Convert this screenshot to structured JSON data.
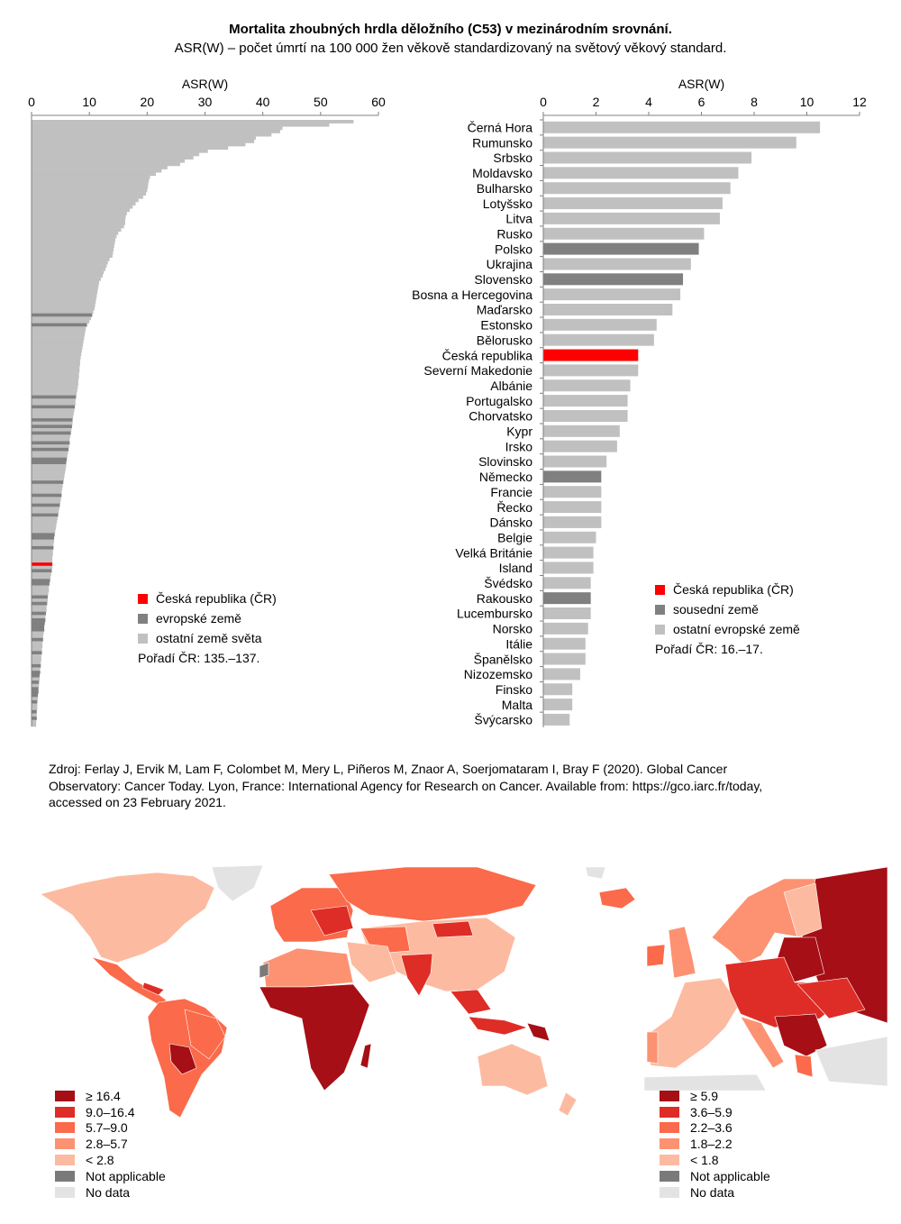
{
  "title": "Mortalita zhoubných hrdla děložního (C53) v mezinárodním srovnání.",
  "subtitle": "ASR(W) – počet úmrtí na 100 000 žen věkově standardizovaný na světový věkový standard.",
  "colors": {
    "cz": "#ff0000",
    "dark": "#808080",
    "light": "#c0c0c0"
  },
  "chart_data": [
    {
      "type": "bar",
      "orientation": "horizontal",
      "xlabel": "ASR(W)",
      "xlim": [
        0,
        60
      ],
      "xticks": [
        "0",
        "10",
        "20",
        "30",
        "40",
        "50",
        "60"
      ],
      "values": [
        55.7,
        51.5,
        43.4,
        43.0,
        41.5,
        38.8,
        38.5,
        37.0,
        34.0,
        30.5,
        29.0,
        28.0,
        26.5,
        25.7,
        23.5,
        22.5,
        21.5,
        20.5,
        20.3,
        20.2,
        20.1,
        20.0,
        19.8,
        19.3,
        18.5,
        18.0,
        17.5,
        17.0,
        16.5,
        16.3,
        16.2,
        16.2,
        16.0,
        15.5,
        15.0,
        14.7,
        14.5,
        14.4,
        14.3,
        14.2,
        14.1,
        14.0,
        13.5,
        13.2,
        13.0,
        12.8,
        12.5,
        12.3,
        12.0,
        11.7,
        11.6,
        11.5,
        11.4,
        11.3,
        11.2,
        11.1,
        11.0,
        10.9,
        10.7,
        10.5,
        10.3,
        10.0,
        9.6,
        9.4,
        9.3,
        9.2,
        9.1,
        9.0,
        8.9,
        8.8,
        8.7,
        8.6,
        8.5,
        8.4,
        8.4,
        8.3,
        8.3,
        8.2,
        8.2,
        8.1,
        8.1,
        8.0,
        7.9,
        7.8,
        7.7,
        7.6,
        7.6,
        7.5,
        7.4,
        7.3,
        7.2,
        7.1,
        7.1,
        7.0,
        6.9,
        6.8,
        6.7,
        6.6,
        6.6,
        6.5,
        6.4,
        6.3,
        6.2,
        6.1,
        6.0,
        6.0,
        5.9,
        5.8,
        5.7,
        5.6,
        5.5,
        5.4,
        5.3,
        5.2,
        5.2,
        5.1,
        5.0,
        4.9,
        4.8,
        4.7,
        4.6,
        4.5,
        4.4,
        4.3,
        4.2,
        4.1,
        4.0,
        3.9,
        3.9,
        3.8,
        3.8,
        3.7,
        3.7,
        3.6,
        3.6,
        3.6,
        3.6,
        3.5,
        3.4,
        3.3,
        3.2,
        3.1,
        3.0,
        3.0,
        2.9,
        2.8,
        2.8,
        2.7,
        2.6,
        2.6,
        2.5,
        2.4,
        2.4,
        2.3,
        2.2,
        2.2,
        2.1,
        2.0,
        2.0,
        1.9,
        1.9,
        1.8,
        1.8,
        1.7,
        1.7,
        1.6,
        1.6,
        1.5,
        1.5,
        1.4,
        1.4,
        1.3,
        1.3,
        1.2,
        1.2,
        1.1,
        1.1,
        1.0,
        1.0,
        1.0,
        0.9,
        0.9,
        0.9,
        0.8,
        0.8
      ],
      "europe_ranks": [
        60,
        63,
        85,
        88,
        92,
        94,
        96,
        99,
        101,
        104,
        105,
        111,
        115,
        118,
        121,
        127,
        128,
        131,
        138,
        141,
        142,
        146,
        148,
        151,
        153,
        154,
        155,
        156,
        159,
        163,
        167,
        169,
        170,
        172,
        174,
        175,
        176,
        178,
        181,
        183
      ],
      "cz_rank": 136,
      "legend": [
        {
          "label": "Česká republika (ČR)",
          "color": "#ff0000"
        },
        {
          "label": "evropské země",
          "color": "#808080"
        },
        {
          "label": "ostatní země světa",
          "color": "#c0c0c0"
        }
      ],
      "note": "Pořadí ČR: 135.–137."
    },
    {
      "type": "bar",
      "orientation": "horizontal",
      "xlabel": "ASR(W)",
      "xlim": [
        0,
        12
      ],
      "xticks": [
        "0",
        "2",
        "4",
        "6",
        "8",
        "10",
        "12"
      ],
      "categories": [
        "Černá Hora",
        "Rumunsko",
        "Srbsko",
        "Moldavsko",
        "Bulharsko",
        "Lotyšsko",
        "Litva",
        "Rusko",
        "Polsko",
        "Ukrajina",
        "Slovensko",
        "Bosna a Hercegovina",
        "Maďarsko",
        "Estonsko",
        "Bělorusko",
        "Česká republika",
        "Severní Makedonie",
        "Albánie",
        "Portugalsko",
        "Chorvatsko",
        "Kypr",
        "Irsko",
        "Slovinsko",
        "Německo",
        "Francie",
        "Řecko",
        "Dánsko",
        "Belgie",
        "Velká Británie",
        "Island",
        "Švédsko",
        "Rakousko",
        "Lucembursko",
        "Norsko",
        "Itálie",
        "Španělsko",
        "Nizozemsko",
        "Finsko",
        "Malta",
        "Švýcarsko"
      ],
      "values": [
        10.5,
        9.6,
        7.9,
        7.4,
        7.1,
        6.8,
        6.7,
        6.1,
        5.9,
        5.6,
        5.3,
        5.2,
        4.9,
        4.3,
        4.2,
        3.6,
        3.6,
        3.3,
        3.2,
        3.2,
        2.9,
        2.8,
        2.4,
        2.2,
        2.2,
        2.2,
        2.2,
        2.0,
        1.9,
        1.9,
        1.8,
        1.8,
        1.8,
        1.7,
        1.6,
        1.6,
        1.4,
        1.1,
        1.1,
        1.0
      ],
      "groups": [
        "o",
        "o",
        "o",
        "o",
        "o",
        "o",
        "o",
        "o",
        "n",
        "o",
        "n",
        "o",
        "o",
        "o",
        "o",
        "cz",
        "o",
        "o",
        "o",
        "o",
        "o",
        "o",
        "o",
        "n",
        "o",
        "o",
        "o",
        "o",
        "o",
        "o",
        "o",
        "n",
        "o",
        "o",
        "o",
        "o",
        "o",
        "o",
        "o",
        "o"
      ],
      "legend": [
        {
          "label": "Česká republika (ČR)",
          "color": "#ff0000"
        },
        {
          "label": "sousední země",
          "color": "#808080"
        },
        {
          "label": "ostatní evropské země",
          "color": "#c0c0c0"
        }
      ],
      "note": "Pořadí ČR: 16.–17."
    }
  ],
  "source": {
    "line1": "Zdroj: Ferlay J, Ervik M, Lam F, Colombet M, Mery L, Piñeros M, Znaor A, Soerjomataram I, Bray F (2020). Global Cancer",
    "line2": "Observatory: Cancer Today. Lyon, France: International Agency for Research on Cancer. Available from: https://gco.iarc.fr/today,",
    "line3": "accessed on 23 February 2021."
  },
  "world_map_legend": [
    {
      "label": "≥ 16.4",
      "color": "#a50f15"
    },
    {
      "label": "9.0–16.4",
      "color": "#de2d26"
    },
    {
      "label": "5.7–9.0",
      "color": "#fb6a4a"
    },
    {
      "label": "2.8–5.7",
      "color": "#fc9272"
    },
    {
      "label": "< 2.8",
      "color": "#fcbba1"
    },
    {
      "label": "Not applicable",
      "color": "#7a7a7a"
    },
    {
      "label": "No data",
      "color": "#e3e3e3"
    }
  ],
  "europe_map_legend": [
    {
      "label": "≥ 5.9",
      "color": "#a50f15"
    },
    {
      "label": "3.6–5.9",
      "color": "#de2d26"
    },
    {
      "label": "2.2–3.6",
      "color": "#fb6a4a"
    },
    {
      "label": "1.8–2.2",
      "color": "#fc9272"
    },
    {
      "label": "< 1.8",
      "color": "#fcbba1"
    },
    {
      "label": "Not applicable",
      "color": "#7a7a7a"
    },
    {
      "label": "No data",
      "color": "#e3e3e3"
    }
  ]
}
